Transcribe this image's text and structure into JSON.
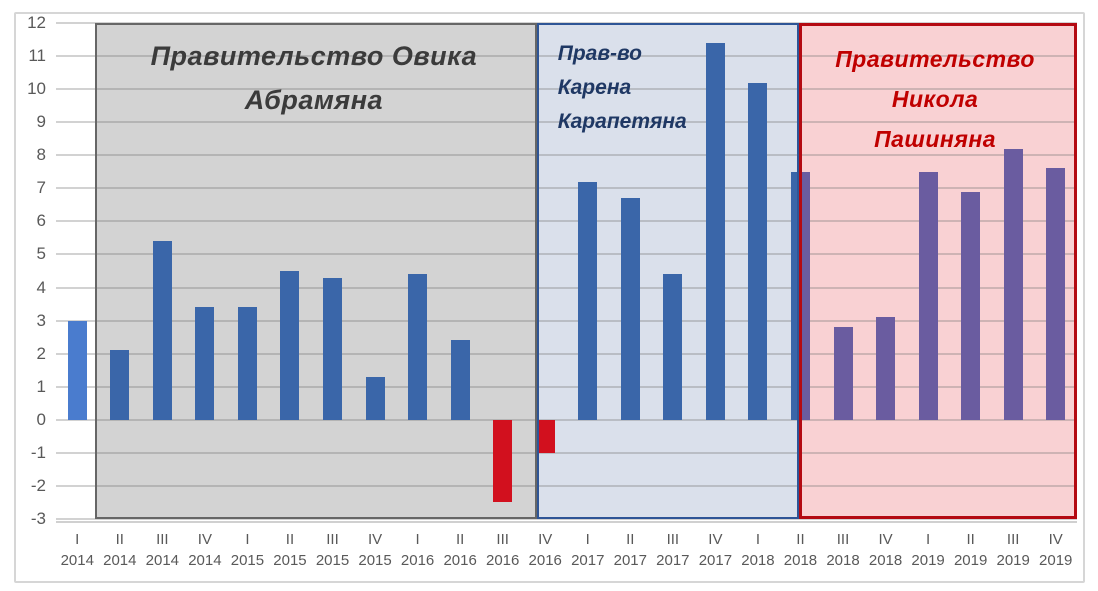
{
  "figure": {
    "background": "#FFFFFF",
    "frame_border_color": "#D6D6D6",
    "gridline_color": "rgba(115,115,115,0.32)",
    "axis_line_color": "#D0D0D0",
    "y_label_color": "#595959",
    "x_label_color": "#595959"
  },
  "chart_data": {
    "type": "bar",
    "title": "",
    "xlabel": "",
    "ylabel": "",
    "ylim": [
      -3,
      12
    ],
    "ytick_step": 1,
    "grid": true,
    "legend": "none",
    "x": [
      {
        "quarter": "I",
        "year": "2014"
      },
      {
        "quarter": "II",
        "year": "2014"
      },
      {
        "quarter": "III",
        "year": "2014"
      },
      {
        "quarter": "IV",
        "year": "2014"
      },
      {
        "quarter": "I",
        "year": "2015"
      },
      {
        "quarter": "II",
        "year": "2015"
      },
      {
        "quarter": "III",
        "year": "2015"
      },
      {
        "quarter": "IV",
        "year": "2015"
      },
      {
        "quarter": "I",
        "year": "2016"
      },
      {
        "quarter": "II",
        "year": "2016"
      },
      {
        "quarter": "III",
        "year": "2016"
      },
      {
        "quarter": "IV",
        "year": "2016"
      },
      {
        "quarter": "I",
        "year": "2017"
      },
      {
        "quarter": "II",
        "year": "2017"
      },
      {
        "quarter": "III",
        "year": "2017"
      },
      {
        "quarter": "IV",
        "year": "2017"
      },
      {
        "quarter": "I",
        "year": "2018"
      },
      {
        "quarter": "II",
        "year": "2018"
      },
      {
        "quarter": "III",
        "year": "2018"
      },
      {
        "quarter": "IV",
        "year": "2018"
      },
      {
        "quarter": "I",
        "year": "2019"
      },
      {
        "quarter": "II",
        "year": "2019"
      },
      {
        "quarter": "III",
        "year": "2019"
      },
      {
        "quarter": "IV",
        "year": "2019"
      }
    ],
    "values": [
      3.0,
      2.1,
      5.4,
      3.4,
      3.4,
      4.5,
      4.3,
      1.3,
      4.4,
      2.4,
      -2.5,
      -1.0,
      7.2,
      6.7,
      4.4,
      11.4,
      10.2,
      7.5,
      2.8,
      3.1,
      7.5,
      6.9,
      8.2,
      7.6
    ],
    "point_styles": [
      "first",
      "default",
      "default",
      "default",
      "default",
      "default",
      "default",
      "default",
      "default",
      "default",
      "negative",
      "negative",
      "default",
      "default",
      "default",
      "default",
      "default",
      "split",
      "pashinyan",
      "pashinyan",
      "pashinyan",
      "pashinyan",
      "pashinyan",
      "pashinyan"
    ],
    "bar_colors": {
      "first": "#4A7CCE",
      "default": "#3A66A9",
      "negative": "#D2101E",
      "pashinyan": "#6A5CA0"
    },
    "regions": [
      {
        "id": "abrahamyan",
        "label_lines": [
          "Правительство Овика",
          "Абрамяна"
        ],
        "start_slot": 0.92,
        "end_slot": 11.3,
        "fill": "#D3D3D3",
        "border": "#666666",
        "border_width": 2,
        "text_color": "#3B3B3B",
        "label_align": "center",
        "label_pad_top": 11,
        "label_pad_left": 0
      },
      {
        "id": "karapetyan",
        "label_lines": [
          "Прав-во",
          "Карена",
          "Карапетяна"
        ],
        "start_slot": 11.3,
        "end_slot": 17.47,
        "fill": "#DAE0EB",
        "border": "#2E5596",
        "border_width": 2,
        "text_color": "#1F3864",
        "label_align": "left",
        "label_pad_top": 14,
        "label_pad_left": 21
      },
      {
        "id": "pashinyan",
        "label_lines": [
          "Правительство",
          "Никола",
          "Пашиняна"
        ],
        "start_slot": 17.47,
        "end_slot": 24,
        "fill": "#F9D1D3",
        "border": "#B40A12",
        "border_width": 3,
        "text_color": "#C00000",
        "label_align": "center",
        "label_pad_top": 16,
        "label_pad_left": 0
      }
    ]
  }
}
